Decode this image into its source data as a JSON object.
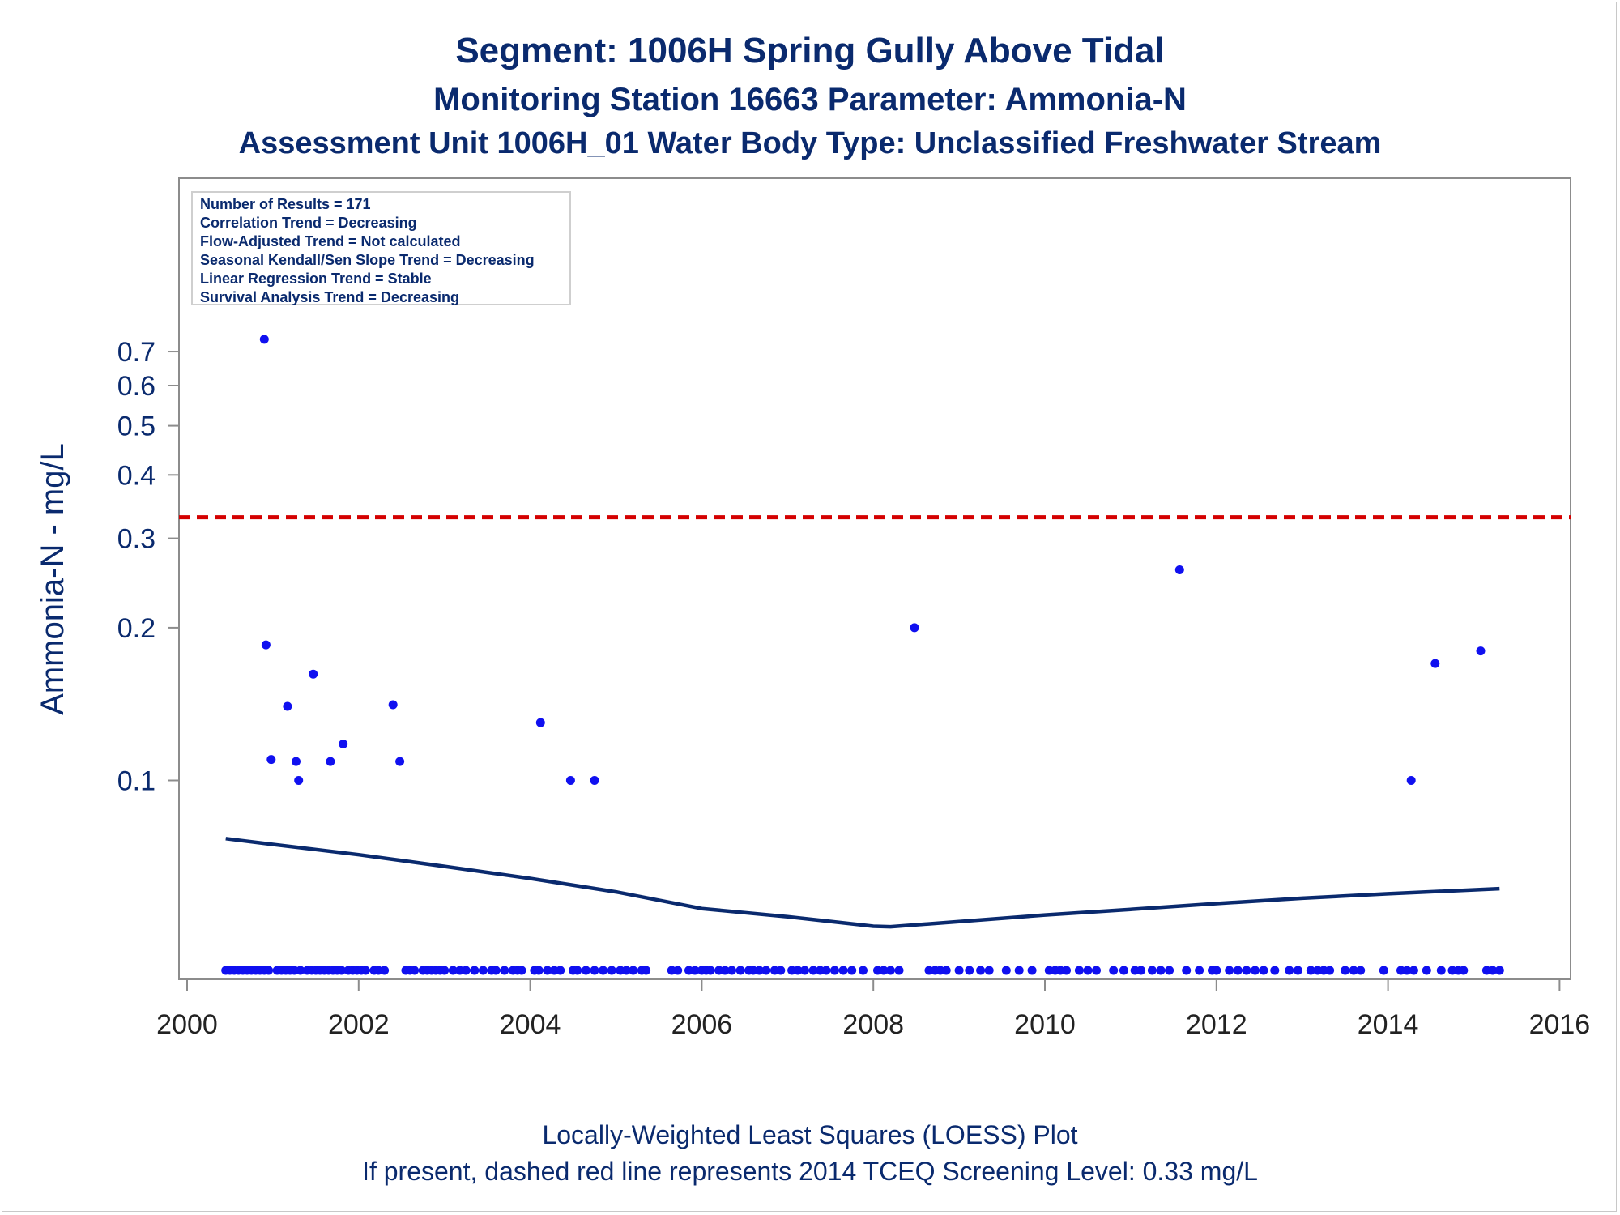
{
  "titles": {
    "line1": "Segment: 1006H  Spring Gully Above Tidal",
    "line2": "Monitoring Station 16663 Parameter: Ammonia-N",
    "line3": "Assessment Unit 1006H_01   Water Body Type: Unclassified Freshwater Stream"
  },
  "legend": {
    "line1": "Number of Results = 171",
    "line2": "Correlation Trend = Decreasing",
    "line3": "Flow-Adjusted Trend = Not calculated",
    "line4": "Seasonal Kendall/Sen Slope Trend = Decreasing",
    "line5": "Linear Regression Trend = Stable",
    "line6": "Survival Analysis Trend = Decreasing"
  },
  "footer": {
    "line1": "Locally-Weighted Least Squares (LOESS) Plot",
    "line2": "If present, dashed red line represents 2014 TCEQ Screening Level: 0.33 mg/L"
  },
  "chart_data": {
    "type": "scatter",
    "title": "Segment: 1006H  Spring Gully Above Tidal",
    "xlabel": "",
    "ylabel": "Ammonia-N - mg/L",
    "y_scale": "log",
    "xlim": [
      2000,
      2016
    ],
    "ylim": [
      0.043,
      0.76
    ],
    "grid": false,
    "legend_placement": "top-left",
    "x_ticks": [
      "2000",
      "2002",
      "2004",
      "2006",
      "2008",
      "2010",
      "2012",
      "2014",
      "2016"
    ],
    "y_ticks": [
      {
        "value": 0.1,
        "label": "0.1"
      },
      {
        "value": 0.2,
        "label": "0.2"
      },
      {
        "value": 0.3,
        "label": "0.3"
      },
      {
        "value": 0.4,
        "label": "0.4"
      },
      {
        "value": 0.5,
        "label": "0.5"
      },
      {
        "value": 0.6,
        "label": "0.6"
      },
      {
        "value": 0.7,
        "label": "0.7"
      }
    ],
    "screening_level": {
      "value": 0.33,
      "style": "dashed",
      "color": "#d40000"
    },
    "series": [
      {
        "type": "scatter",
        "color": "#1010f0",
        "points": [
          [
            2000.9,
            0.74
          ],
          [
            2000.92,
            0.185
          ],
          [
            2000.98,
            0.11
          ],
          [
            2001.17,
            0.14
          ],
          [
            2001.27,
            0.109
          ],
          [
            2001.3,
            0.1
          ],
          [
            2001.47,
            0.162
          ],
          [
            2001.67,
            0.109
          ],
          [
            2001.82,
            0.118
          ],
          [
            2002.4,
            0.141
          ],
          [
            2002.48,
            0.109
          ],
          [
            2004.12,
            0.13
          ],
          [
            2004.47,
            0.1
          ],
          [
            2004.75,
            0.1
          ],
          [
            2008.48,
            0.2
          ],
          [
            2011.57,
            0.26
          ],
          [
            2014.27,
            0.1
          ],
          [
            2014.55,
            0.17
          ],
          [
            2015.08,
            0.18
          ]
        ]
      },
      {
        "type": "line",
        "color": "#0a2a6e",
        "points": [
          [
            2000.45,
            0.0768
          ],
          [
            2001.0,
            0.0748
          ],
          [
            2002.0,
            0.0714
          ],
          [
            2003.0,
            0.0677
          ],
          [
            2004.0,
            0.0641
          ],
          [
            2005.0,
            0.0603
          ],
          [
            2006.0,
            0.0559
          ],
          [
            2007.0,
            0.0539
          ],
          [
            2008.0,
            0.0516
          ],
          [
            2008.2,
            0.0515
          ],
          [
            2009.0,
            0.0527
          ],
          [
            2010.0,
            0.0543
          ],
          [
            2011.0,
            0.0557
          ],
          [
            2012.0,
            0.0572
          ],
          [
            2013.0,
            0.0586
          ],
          [
            2014.0,
            0.0598
          ],
          [
            2015.3,
            0.0612
          ]
        ]
      },
      {
        "type": "scatter",
        "color": "#1010f0",
        "censored_at_bottom": true,
        "x": [
          2000.45,
          2000.5,
          2000.55,
          2000.6,
          2000.65,
          2000.7,
          2000.75,
          2000.8,
          2000.85,
          2000.9,
          2000.95,
          2001.05,
          2001.1,
          2001.15,
          2001.2,
          2001.25,
          2001.32,
          2001.4,
          2001.45,
          2001.5,
          2001.55,
          2001.6,
          2001.65,
          2001.7,
          2001.75,
          2001.8,
          2001.88,
          2001.93,
          2001.98,
          2002.03,
          2002.08,
          2002.18,
          2002.23,
          2002.3,
          2002.55,
          2002.6,
          2002.65,
          2002.75,
          2002.8,
          2002.85,
          2002.9,
          2002.95,
          2003.0,
          2003.1,
          2003.18,
          2003.25,
          2003.35,
          2003.45,
          2003.55,
          2003.6,
          2003.7,
          2003.8,
          2003.85,
          2003.9,
          2004.05,
          2004.1,
          2004.2,
          2004.28,
          2004.35,
          2004.5,
          2004.55,
          2004.65,
          2004.75,
          2004.85,
          2004.95,
          2005.05,
          2005.12,
          2005.2,
          2005.3,
          2005.35,
          2005.65,
          2005.72,
          2005.85,
          2005.92,
          2006.0,
          2006.05,
          2006.1,
          2006.2,
          2006.27,
          2006.35,
          2006.45,
          2006.55,
          2006.6,
          2006.67,
          2006.75,
          2006.85,
          2006.92,
          2007.05,
          2007.12,
          2007.2,
          2007.3,
          2007.38,
          2007.45,
          2007.55,
          2007.65,
          2007.75,
          2007.88,
          2008.05,
          2008.12,
          2008.2,
          2008.3,
          2008.65,
          2008.72,
          2008.78,
          2008.85,
          2009.0,
          2009.12,
          2009.25,
          2009.35,
          2009.55,
          2009.7,
          2009.85,
          2010.05,
          2010.12,
          2010.18,
          2010.25,
          2010.4,
          2010.5,
          2010.6,
          2010.8,
          2010.92,
          2011.05,
          2011.12,
          2011.25,
          2011.35,
          2011.45,
          2011.65,
          2011.8,
          2011.95,
          2012.0,
          2012.15,
          2012.25,
          2012.35,
          2012.45,
          2012.55,
          2012.68,
          2012.85,
          2012.95,
          2013.1,
          2013.18,
          2013.25,
          2013.32,
          2013.5,
          2013.6,
          2013.68,
          2013.95,
          2014.15,
          2014.22,
          2014.3,
          2014.45,
          2014.62,
          2014.75,
          2014.82,
          2014.88,
          2015.15,
          2015.22,
          2015.3
        ]
      }
    ]
  }
}
